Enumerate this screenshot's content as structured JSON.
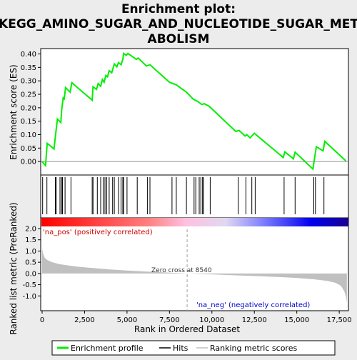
{
  "chart_data": {
    "type": "line",
    "title_lines": [
      "Enrichment plot:",
      "KEGG_AMINO_SUGAR_AND_NUCLEOTIDE_SUGAR_MET",
      "ABOLISM"
    ],
    "xlabel": "Rank in Ordered Dataset",
    "ylabel_top": "Enrichment score (ES)",
    "ylabel_bottom": "Ranked list metric (PreRanked)",
    "xlim": [
      0,
      18000
    ],
    "ylim_es": [
      -0.05,
      0.42
    ],
    "ylim_metric": [
      -1.5,
      2.0
    ],
    "x_ticks": [
      0,
      2500,
      5000,
      7500,
      10000,
      12500,
      15000,
      17500
    ],
    "x_tick_labels": [
      "0",
      "2,500",
      "5,000",
      "7,500",
      "10,000",
      "12,500",
      "15,000",
      "17,500"
    ],
    "es_ticks": [
      0.0,
      0.05,
      0.1,
      0.15,
      0.2,
      0.25,
      0.3,
      0.35,
      0.4
    ],
    "es_tick_labels": [
      "0.00",
      "0.05",
      "0.10",
      "0.15",
      "0.20",
      "0.25",
      "0.30",
      "0.35",
      "0.40"
    ],
    "metric_ticks": [
      -1.0,
      -0.5,
      0.0,
      0.5,
      1.0,
      1.5,
      2.0
    ],
    "metric_tick_labels": [
      "-1.0",
      "-0.5",
      "0.0",
      "0.5",
      "1.0",
      "1.5",
      "2.0"
    ],
    "zero_cross_label": "Zero cross at 8540",
    "zero_cross_x": 8540,
    "pos_label": "'na_pos' (positively correlated)",
    "neg_label": "'na_neg' (negatively correlated)",
    "legend": [
      "Enrichment profile",
      "Hits",
      "Ranking metric scores"
    ],
    "hits": [
      30,
      280,
      780,
      830,
      1050,
      1150,
      1200,
      1350,
      1700,
      2950,
      3000,
      3250,
      3450,
      3600,
      3700,
      3800,
      3950,
      4150,
      4250,
      4500,
      4650,
      4750,
      4800,
      5000,
      5600,
      6200,
      6350,
      7650,
      7900,
      8500,
      8950,
      9050,
      9250,
      9350,
      9450,
      9500,
      9900,
      11550,
      12000,
      12350,
      12550,
      14250,
      14900,
      16000,
      16100,
      16600
    ],
    "es_profile": [
      [
        0,
        0.0
      ],
      [
        200,
        -0.015
      ],
      [
        300,
        0.068
      ],
      [
        700,
        0.047
      ],
      [
        800,
        0.103
      ],
      [
        900,
        0.158
      ],
      [
        1100,
        0.145
      ],
      [
        1150,
        0.19
      ],
      [
        1250,
        0.24
      ],
      [
        1300,
        0.23
      ],
      [
        1380,
        0.275
      ],
      [
        1650,
        0.258
      ],
      [
        1750,
        0.293
      ],
      [
        2950,
        0.228
      ],
      [
        3000,
        0.278
      ],
      [
        3200,
        0.268
      ],
      [
        3300,
        0.29
      ],
      [
        3450,
        0.28
      ],
      [
        3550,
        0.305
      ],
      [
        3650,
        0.295
      ],
      [
        3750,
        0.32
      ],
      [
        3850,
        0.315
      ],
      [
        3950,
        0.338
      ],
      [
        4100,
        0.33
      ],
      [
        4250,
        0.363
      ],
      [
        4400,
        0.352
      ],
      [
        4500,
        0.368
      ],
      [
        4650,
        0.36
      ],
      [
        4750,
        0.38
      ],
      [
        4800,
        0.402
      ],
      [
        4950,
        0.395
      ],
      [
        5050,
        0.402
      ],
      [
        5550,
        0.38
      ],
      [
        5650,
        0.385
      ],
      [
        6150,
        0.355
      ],
      [
        6350,
        0.36
      ],
      [
        7500,
        0.295
      ],
      [
        7900,
        0.285
      ],
      [
        8500,
        0.258
      ],
      [
        8900,
        0.232
      ],
      [
        9200,
        0.222
      ],
      [
        9400,
        0.212
      ],
      [
        9550,
        0.215
      ],
      [
        9850,
        0.205
      ],
      [
        11400,
        0.112
      ],
      [
        11600,
        0.116
      ],
      [
        11950,
        0.095
      ],
      [
        12050,
        0.1
      ],
      [
        12250,
        0.088
      ],
      [
        12500,
        0.105
      ],
      [
        14200,
        0.015
      ],
      [
        14300,
        0.036
      ],
      [
        14800,
        0.01
      ],
      [
        14900,
        0.035
      ],
      [
        15950,
        -0.028
      ],
      [
        16050,
        0.015
      ],
      [
        16150,
        0.055
      ],
      [
        16550,
        0.04
      ],
      [
        16650,
        0.075
      ],
      [
        17900,
        0.002
      ]
    ],
    "metric_profile": [
      [
        0,
        1.1
      ],
      [
        50,
        0.9
      ],
      [
        150,
        0.7
      ],
      [
        300,
        0.6
      ],
      [
        600,
        0.5
      ],
      [
        1000,
        0.42
      ],
      [
        1500,
        0.36
      ],
      [
        2000,
        0.31
      ],
      [
        3000,
        0.24
      ],
      [
        4000,
        0.18
      ],
      [
        5000,
        0.13
      ],
      [
        6000,
        0.09
      ],
      [
        7000,
        0.055
      ],
      [
        8000,
        0.02
      ],
      [
        8540,
        0.0
      ],
      [
        9000,
        -0.015
      ],
      [
        10000,
        -0.04
      ],
      [
        11000,
        -0.07
      ],
      [
        12000,
        -0.1
      ],
      [
        13000,
        -0.13
      ],
      [
        14000,
        -0.16
      ],
      [
        15000,
        -0.2
      ],
      [
        16000,
        -0.26
      ],
      [
        16800,
        -0.33
      ],
      [
        17300,
        -0.42
      ],
      [
        17600,
        -0.55
      ],
      [
        17800,
        -0.8
      ],
      [
        17900,
        -1.05
      ],
      [
        17950,
        -1.3
      ]
    ],
    "colors": {
      "enrichment_line": "#00ee00",
      "hit_lines": "#000000",
      "metric_fill": "#c0c0c0",
      "zero_cross_line": "#a0a0a0",
      "pos_label": "#cc0000",
      "neg_label": "#0000cc",
      "gradient": [
        "#ff0000",
        "#ff8080",
        "#ffc0e0",
        "#e0d8f0",
        "#8080ff",
        "#0000ee",
        "#1a0090"
      ]
    }
  }
}
